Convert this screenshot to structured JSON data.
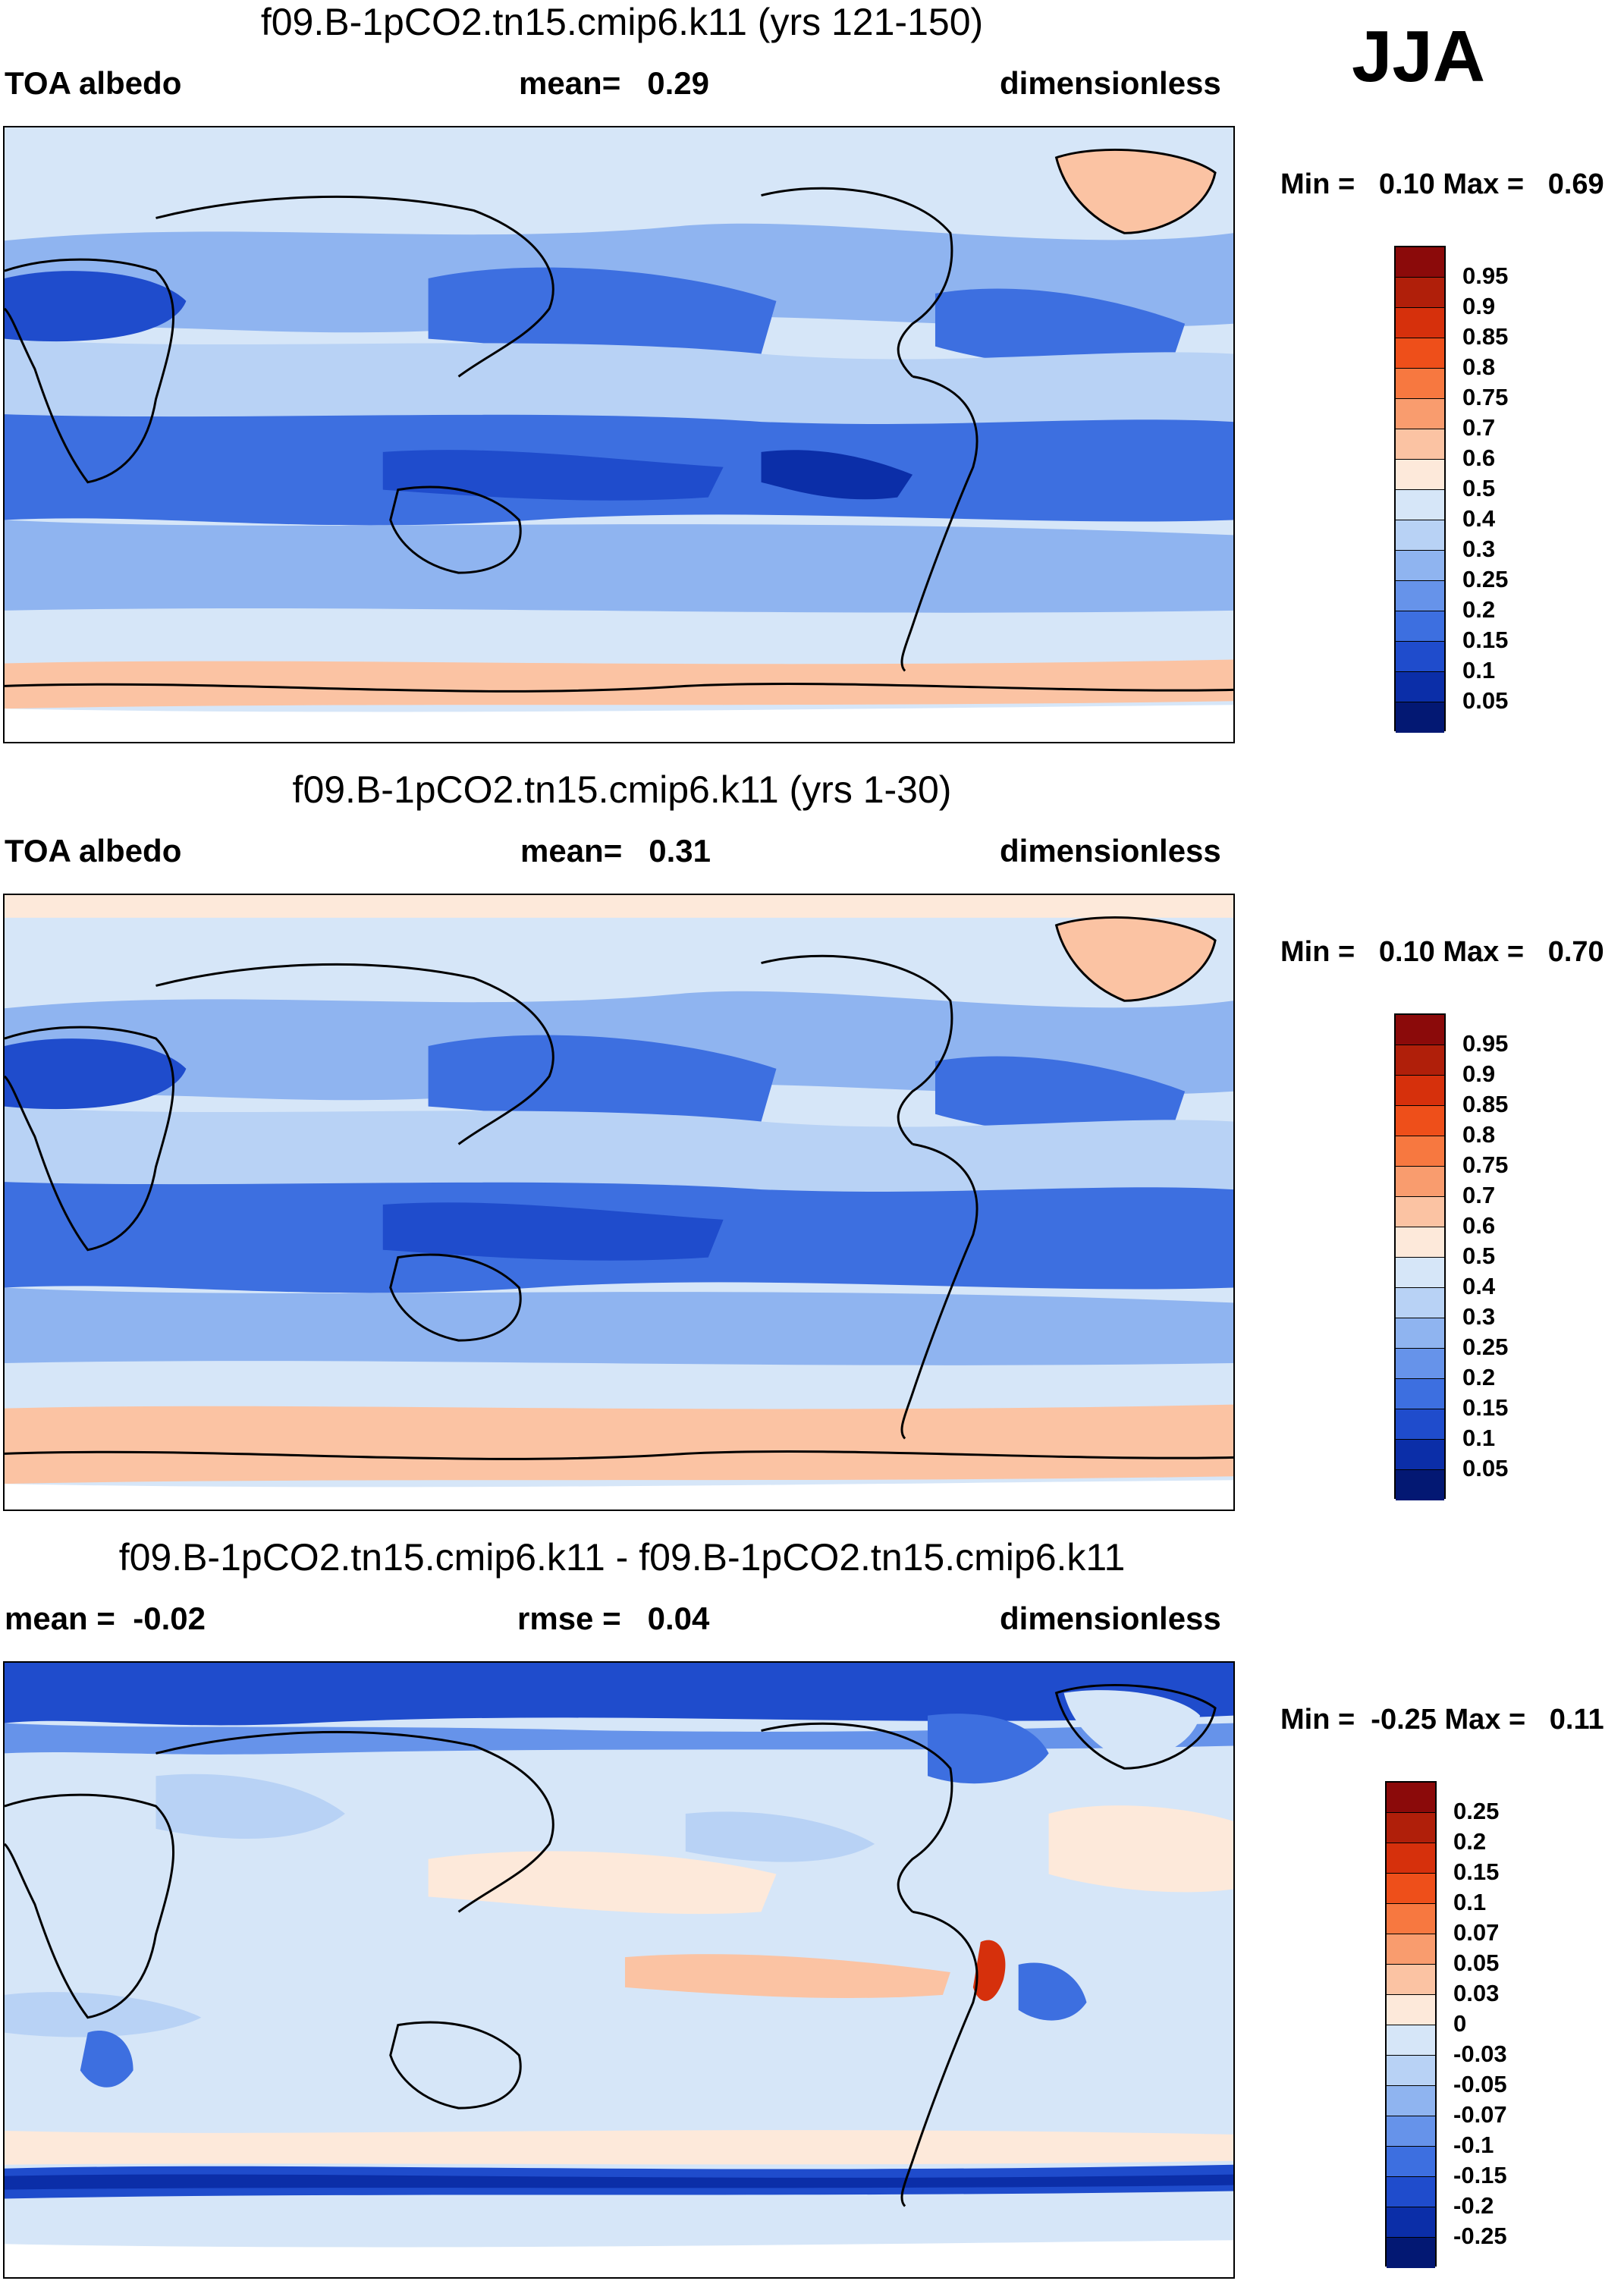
{
  "season": "JJA",
  "panels": [
    {
      "title": "f09.B-1pCO2.tn15.cmip6.k11 (yrs 121-150)",
      "left": "TOA albedo",
      "center": "mean=   0.29",
      "right": "dimensionless",
      "minmax": "Min =   0.10 Max =   0.69",
      "levels": [
        "0.95",
        "0.9",
        "0.85",
        "0.8",
        "0.75",
        "0.7",
        "0.6",
        "0.5",
        "0.4",
        "0.3",
        "0.25",
        "0.2",
        "0.15",
        "0.1",
        "0.05"
      ],
      "colors": [
        "#8b0a0a",
        "#b01f0a",
        "#d6300c",
        "#ee4f1a",
        "#f77840",
        "#f99c6e",
        "#fbc3a3",
        "#fde9da",
        "#d6e6f8",
        "#b8d2f5",
        "#8fb4f0",
        "#6693ea",
        "#3d6fe0",
        "#1f4ccc",
        "#0b2ea8",
        "#031873"
      ]
    },
    {
      "title": "f09.B-1pCO2.tn15.cmip6.k11 (yrs 1-30)",
      "left": "TOA albedo",
      "center": "mean=   0.31",
      "right": "dimensionless",
      "minmax": "Min =   0.10 Max =   0.70",
      "levels": [
        "0.95",
        "0.9",
        "0.85",
        "0.8",
        "0.75",
        "0.7",
        "0.6",
        "0.5",
        "0.4",
        "0.3",
        "0.25",
        "0.2",
        "0.15",
        "0.1",
        "0.05"
      ],
      "colors": [
        "#8b0a0a",
        "#b01f0a",
        "#d6300c",
        "#ee4f1a",
        "#f77840",
        "#f99c6e",
        "#fbc3a3",
        "#fde9da",
        "#d6e6f8",
        "#b8d2f5",
        "#8fb4f0",
        "#6693ea",
        "#3d6fe0",
        "#1f4ccc",
        "#0b2ea8",
        "#031873"
      ]
    },
    {
      "title": "f09.B-1pCO2.tn15.cmip6.k11 - f09.B-1pCO2.tn15.cmip6.k11",
      "left": "mean =  -0.02",
      "center": "rmse =   0.04",
      "right": "dimensionless",
      "minmax": "Min =  -0.25 Max =   0.11",
      "levels": [
        "0.25",
        "0.2",
        "0.15",
        "0.1",
        "0.07",
        "0.05",
        "0.03",
        "0",
        "-0.03",
        "-0.05",
        "-0.07",
        "-0.1",
        "-0.15",
        "-0.2",
        "-0.25"
      ],
      "colors": [
        "#8b0a0a",
        "#b01f0a",
        "#d6300c",
        "#ee4f1a",
        "#f77840",
        "#f99c6e",
        "#fbc3a3",
        "#fde9da",
        "#d6e6f8",
        "#b8d2f5",
        "#8fb4f0",
        "#6693ea",
        "#3d6fe0",
        "#1f4ccc",
        "#0b2ea8",
        "#031873"
      ]
    }
  ]
}
